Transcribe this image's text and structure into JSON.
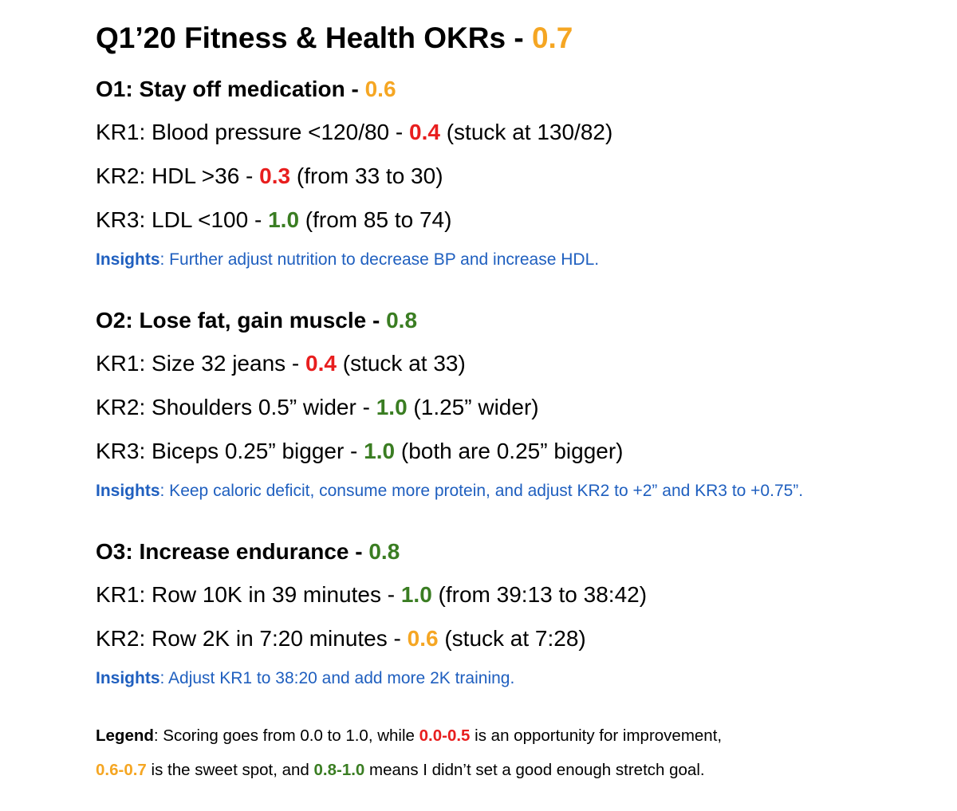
{
  "colors": {
    "orange": "#f5a623",
    "red": "#e81e1e",
    "green": "#3a7d22",
    "insight_blue": "#1f5fbf",
    "text": "#000000"
  },
  "title": {
    "text": "Q1’20 Fitness & Health OKRs - ",
    "score": "0.7"
  },
  "objectives": [
    {
      "heading": "O1: Stay off medication - ",
      "score": "0.6",
      "key_results": [
        {
          "label": "KR1: Blood pressure <120/80 - ",
          "score": "0.4",
          "note": " (stuck at 130/82)"
        },
        {
          "label": "KR2: HDL >36 - ",
          "score": "0.3",
          "note": " (from 33 to 30)"
        },
        {
          "label": "KR3: LDL <100 - ",
          "score": "1.0",
          "note": " (from 85 to 74)"
        }
      ],
      "insight_label": "Insights",
      "insight_text": ": Further adjust nutrition to decrease BP and increase HDL."
    },
    {
      "heading": "O2: Lose fat, gain muscle - ",
      "score": "0.8",
      "key_results": [
        {
          "label": "KR1: Size 32 jeans - ",
          "score": "0.4",
          "note": " (stuck at 33)"
        },
        {
          "label": "KR2: Shoulders 0.5” wider - ",
          "score": "1.0",
          "note": " (1.25” wider)"
        },
        {
          "label": "KR3: Biceps 0.25” bigger - ",
          "score": "1.0",
          "note": " (both are 0.25” bigger)"
        }
      ],
      "insight_label": "Insights",
      "insight_text": ": Keep caloric deficit, consume more protein, and adjust KR2 to +2” and KR3 to +0.75”."
    },
    {
      "heading": "O3: Increase endurance - ",
      "score": "0.8",
      "key_results": [
        {
          "label": "KR1: Row 10K in 39 minutes - ",
          "score": "1.0",
          "note": " (from 39:13 to 38:42)"
        },
        {
          "label": "KR2: Row 2K in 7:20 minutes - ",
          "score": "0.6",
          "note": " (stuck at 7:28)"
        }
      ],
      "insight_label": "Insights",
      "insight_text": ": Adjust KR1 to 38:20 and add more 2K training."
    }
  ],
  "legend": {
    "label": "Legend",
    "line1_a": ": Scoring goes from 0.0 to 1.0, while ",
    "range_low": "0.0-0.5",
    "line1_b": " is an opportunity for improvement,",
    "range_mid": "0.6-0.7",
    "line2_a": " is the sweet spot, and ",
    "range_high": "0.8-1.0",
    "line2_b": " means I didn’t set a good enough stretch goal."
  }
}
